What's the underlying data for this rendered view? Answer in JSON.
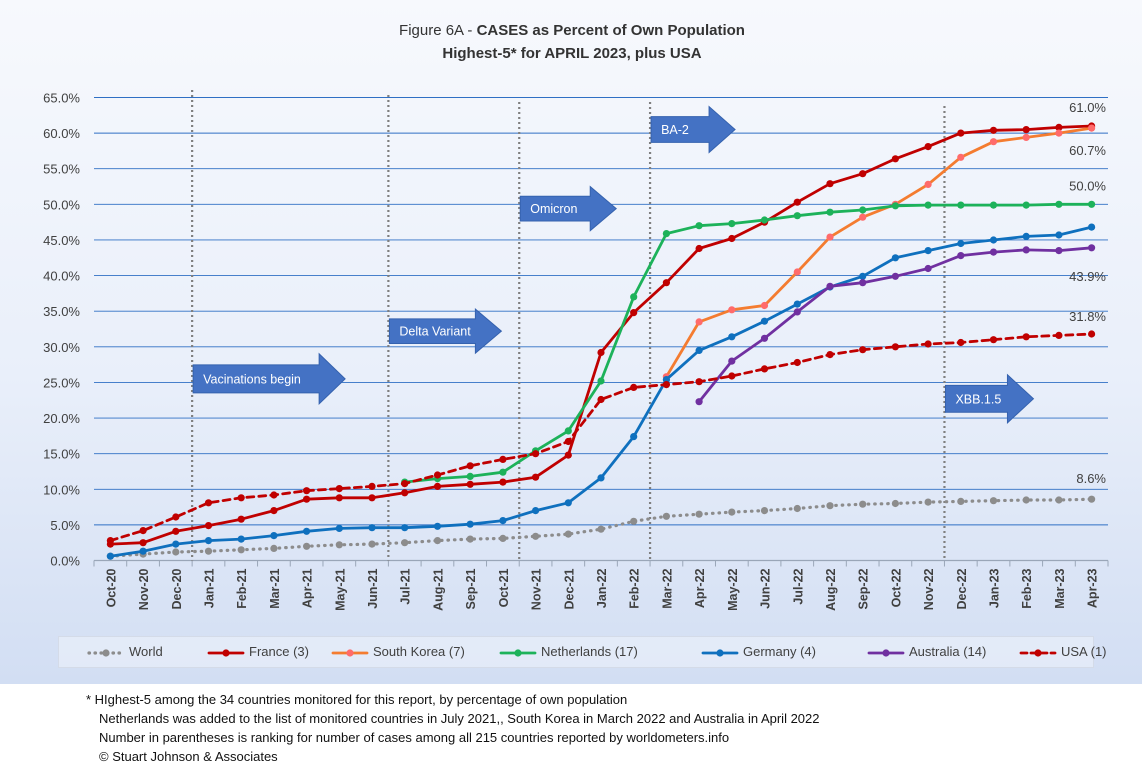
{
  "chart_data": {
    "type": "line",
    "title": "Figure 6A - CASES as Percent of Own Population",
    "title_prefix": "Figure 6A - ",
    "title_main": "CASES as Percent of Own Population",
    "subtitle": "Highest-5* for APRIL 2023, plus USA",
    "x": [
      "Oct-20",
      "Nov-20",
      "Dec-20",
      "Jan-21",
      "Feb-21",
      "Mar-21",
      "Apr-21",
      "May-21",
      "Jun-21",
      "Jul-21",
      "Aug-21",
      "Sep-21",
      "Oct-21",
      "Nov-21",
      "Dec-21",
      "Jan-22",
      "Feb-22",
      "Mar-22",
      "Apr-22",
      "May-22",
      "Jun-22",
      "Jul-22",
      "Aug-22",
      "Sep-22",
      "Oct-22",
      "Nov-22",
      "Dec-22",
      "Jan-23",
      "Feb-23",
      "Mar-23",
      "Apr-23"
    ],
    "ylim": [
      0,
      65
    ],
    "yticks": [
      "0.0%",
      "5.0%",
      "10.0%",
      "15.0%",
      "20.0%",
      "25.0%",
      "30.0%",
      "35.0%",
      "40.0%",
      "45.0%",
      "50.0%",
      "55.0%",
      "60.0%",
      "65.0%"
    ],
    "grid": true,
    "legend_position": "bottom",
    "series": [
      {
        "name": "World",
        "color": "#8c8c8c",
        "style": "dotted",
        "values": [
          0.6,
          0.9,
          1.2,
          1.3,
          1.5,
          1.7,
          2.0,
          2.2,
          2.3,
          2.5,
          2.8,
          3.0,
          3.1,
          3.4,
          3.7,
          4.4,
          5.5,
          6.2,
          6.5,
          6.8,
          7.0,
          7.3,
          7.7,
          7.9,
          8.0,
          8.2,
          8.3,
          8.4,
          8.5,
          8.5,
          8.6
        ]
      },
      {
        "name": "France (3)",
        "color": "#c00000",
        "style": "solid",
        "values": [
          2.3,
          2.5,
          4.1,
          4.9,
          5.8,
          7.0,
          8.6,
          8.8,
          8.8,
          9.5,
          10.4,
          10.7,
          11.0,
          11.7,
          14.8,
          29.2,
          34.8,
          39.0,
          43.8,
          45.2,
          47.5,
          50.3,
          52.9,
          54.3,
          56.4,
          58.1,
          60.0,
          60.4,
          60.5,
          60.8,
          61.0
        ]
      },
      {
        "name": "South Korea (7)",
        "color": "#f47c30",
        "marker_color": "#ff6b6b",
        "style": "solid",
        "values": [
          null,
          null,
          null,
          null,
          null,
          null,
          null,
          null,
          null,
          null,
          null,
          null,
          null,
          null,
          null,
          null,
          null,
          25.8,
          33.5,
          35.2,
          35.8,
          40.5,
          45.4,
          48.2,
          50.0,
          52.8,
          56.6,
          58.8,
          59.4,
          60.0,
          60.7
        ]
      },
      {
        "name": "Netherlands (17)",
        "color": "#1db25a",
        "style": "solid",
        "values": [
          null,
          null,
          null,
          null,
          null,
          null,
          null,
          null,
          null,
          11.0,
          11.5,
          11.8,
          12.4,
          15.4,
          18.2,
          25.2,
          37.0,
          45.9,
          47.0,
          47.3,
          47.8,
          48.4,
          48.9,
          49.2,
          49.8,
          49.9,
          49.9,
          49.9,
          49.9,
          50.0,
          50.0
        ]
      },
      {
        "name": "Germany (4)",
        "color": "#0f70be",
        "style": "solid",
        "values": [
          0.6,
          1.3,
          2.3,
          2.8,
          3.0,
          3.5,
          4.1,
          4.5,
          4.6,
          4.6,
          4.8,
          5.1,
          5.6,
          7.0,
          8.1,
          11.6,
          17.4,
          25.4,
          29.5,
          31.4,
          33.6,
          36.0,
          38.4,
          39.9,
          42.5,
          43.5,
          44.5,
          45.0,
          45.5,
          45.7,
          46.8
        ]
      },
      {
        "name": "Australia (14)",
        "color": "#7030a0",
        "style": "solid",
        "values": [
          null,
          null,
          null,
          null,
          null,
          null,
          null,
          null,
          null,
          null,
          null,
          null,
          null,
          null,
          null,
          null,
          null,
          null,
          22.3,
          28.0,
          31.2,
          34.9,
          38.5,
          39.0,
          39.9,
          41.0,
          42.8,
          43.3,
          43.6,
          43.5,
          43.9
        ]
      },
      {
        "name": "USA (1)",
        "color": "#c00000",
        "style": "dashed",
        "values": [
          2.8,
          4.2,
          6.1,
          8.1,
          8.8,
          9.2,
          9.8,
          10.1,
          10.4,
          10.8,
          12.0,
          13.3,
          14.2,
          15.0,
          16.7,
          22.6,
          24.3,
          24.7,
          25.1,
          25.9,
          26.9,
          27.8,
          28.9,
          29.6,
          30.0,
          30.4,
          30.6,
          31.0,
          31.4,
          31.6,
          31.8
        ]
      }
    ],
    "data_labels": [
      {
        "text": "61.0%",
        "series": "France (3)"
      },
      {
        "text": "60.7%",
        "series": "South Korea (7)"
      },
      {
        "text": "50.0%",
        "series": "Netherlands (17)"
      },
      {
        "text": "43.9%",
        "series": "Australia (14)"
      },
      {
        "text": "31.8%",
        "series": "USA (1)"
      },
      {
        "text": "8.6%",
        "series": "World"
      }
    ],
    "annotations": [
      {
        "label": "Vacinations begin",
        "x": "Jan-21",
        "value": 25.5
      },
      {
        "label": "Delta Variant",
        "x": "Jul-21",
        "value": 32.2
      },
      {
        "label": "Omicron",
        "x": "Nov-21",
        "value": 49.4
      },
      {
        "label": "BA-2",
        "x": "Mar-22",
        "value": 60.5
      },
      {
        "label": "XBB.1.5",
        "x": "Dec-22",
        "value": 22.7
      }
    ]
  },
  "footnotes": [
    "* HIghest-5 among the 34 countries monitored for this report, by percentage of own population",
    "Netherlands was added to the list of monitored countries in July 2021,, South Korea in March 2022 and Australia in April 2022",
    "Number in parentheses is ranking for number of cases among all 215 countries reported by worldometers.info",
    "© Stuart Johnson & Associates"
  ]
}
